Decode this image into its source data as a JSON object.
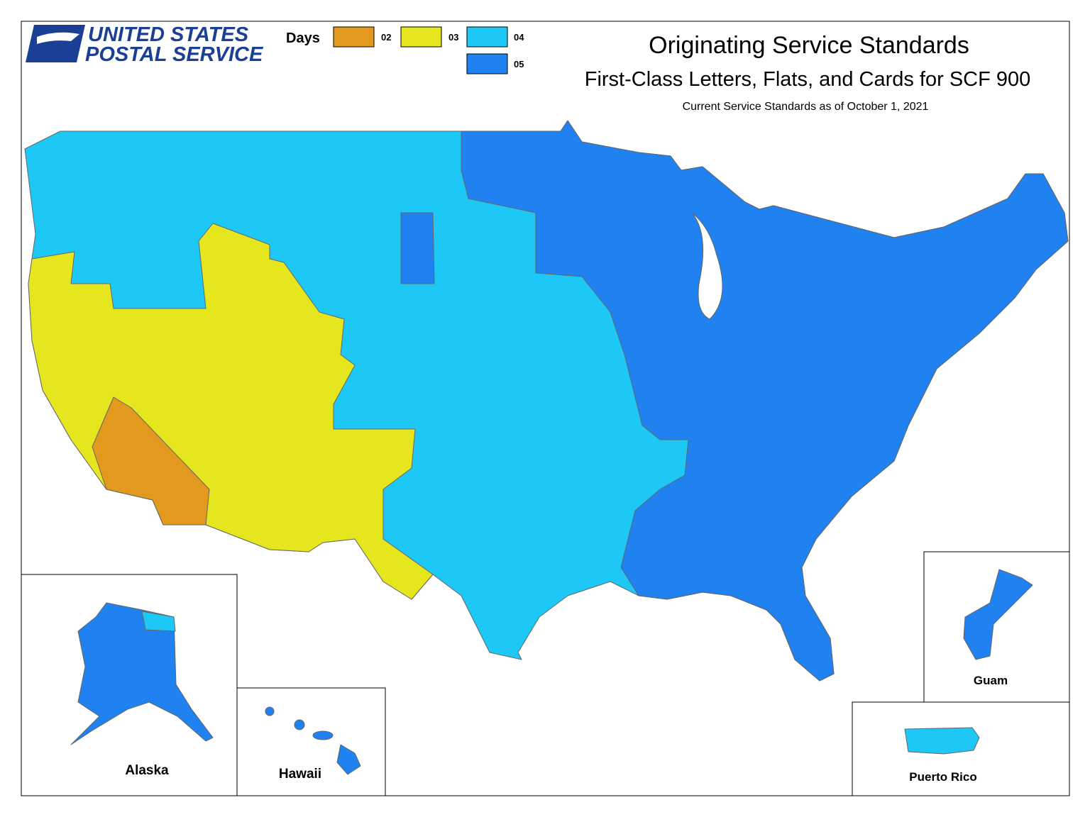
{
  "logo": {
    "line1": "UNITED STATES",
    "line2": "POSTAL SERVICE"
  },
  "title": "Originating Service Standards",
  "subtitle": "First-Class Letters, Flats, and Cards for SCF 900",
  "note": "Current Service Standards as of October 1, 2021",
  "legend": {
    "title": "Days",
    "items": [
      {
        "label": "02",
        "color": "#e3981e"
      },
      {
        "label": "03",
        "color": "#e6e61f"
      },
      {
        "label": "04",
        "color": "#1ec8f6"
      },
      {
        "label": "05",
        "color": "#1f82f0"
      }
    ]
  },
  "insets": [
    "Alaska",
    "Hawaii",
    "Guam",
    "Puerto Rico"
  ]
}
